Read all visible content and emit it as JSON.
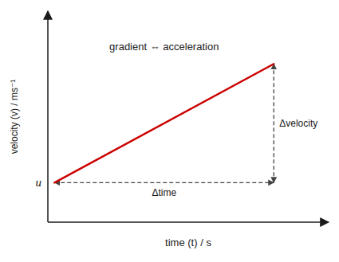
{
  "chart_data": {
    "type": "line",
    "xlabel": "time (t) / s",
    "ylabel": "velocity (v) / ms⁻¹",
    "x": [
      0.0,
      10.0
    ],
    "values": [
      1.0,
      5.5
    ],
    "color": "#cc0000",
    "xlim": [
      -0.3,
      12.5
    ],
    "ylim": [
      -0.5,
      7.5
    ],
    "tick_labels": false,
    "annotations": [
      "u",
      "Δtime",
      "Δvelocity",
      "gradient ⇔ acceleration"
    ]
  }
}
